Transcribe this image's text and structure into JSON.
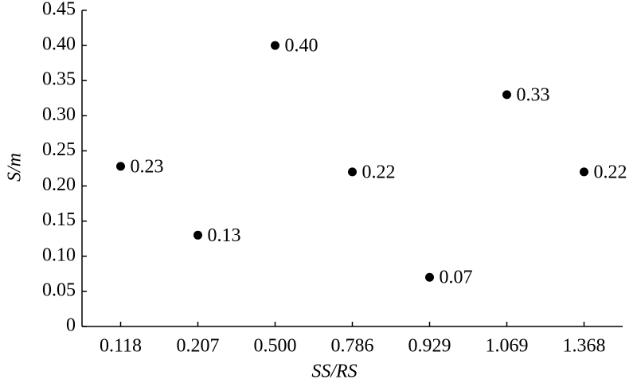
{
  "chart_data": {
    "type": "scatter",
    "categories": [
      "0.118",
      "0.207",
      "0.500",
      "0.786",
      "0.929",
      "1.069",
      "1.368"
    ],
    "values": [
      0.228,
      0.13,
      0.4,
      0.22,
      0.07,
      0.33,
      0.22
    ],
    "value_labels": [
      "0.23",
      "0.13",
      "0.40",
      "0.22",
      "0.07",
      "0.33",
      "0.22"
    ],
    "color": "#000000",
    "x_label": "SS/RS",
    "y_label": "S/m",
    "ylim": [
      0,
      0.45
    ],
    "yticks": [
      0,
      0.05,
      {
        "value": 0.1,
        "label": "0.10"
      },
      0.15,
      {
        "value": 0.2,
        "label": "0.20"
      },
      0.25,
      {
        "value": 0.3,
        "label": "0.30"
      },
      0.35,
      {
        "value": 0.4,
        "label": "0.40"
      },
      0.45
    ],
    "grid": false
  }
}
